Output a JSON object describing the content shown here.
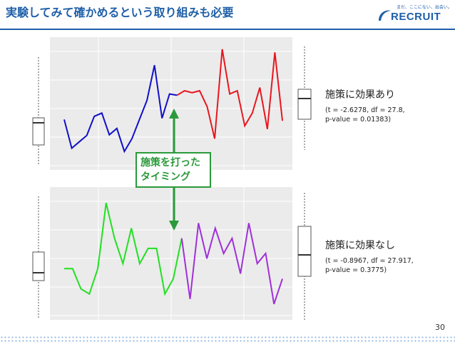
{
  "title": "実験してみて確かめるという取り組みも必要",
  "logo": {
    "tagline": "まだ、ここにない、出会い。",
    "word": "RECRUIT"
  },
  "colors": {
    "accent": "#1f5fa8",
    "green_callout": "#2a9a3a"
  },
  "callout": {
    "line1": "施策を打った",
    "line2": "タイミング"
  },
  "top_panel": {
    "heading": "施策に効果あり",
    "stat_line1": "(t = -2.6278, df = 27.8,",
    "stat_line2": "p-value = 0.01383)",
    "before_color": "#1010c8",
    "after_color": "#e8161e"
  },
  "bottom_panel": {
    "heading": "施策に効果なし",
    "stat_line1": "(t = -0.8967, df = 27.917,",
    "stat_line2": "p-value = 0.3775)",
    "before_color": "#22e022",
    "after_color": "#a030d8"
  },
  "page_number": "30",
  "chart_data": [
    {
      "type": "line",
      "series": [
        {
          "values": [
            0.7,
            0.25,
            0.35,
            0.45,
            0.75,
            0.8,
            0.46,
            0.56,
            0.2,
            0.4,
            0.7,
            1.0,
            1.55,
            0.72,
            1.1,
            1.08
          ]
        },
        {
          "values": [
            1.08,
            1.15,
            1.12,
            1.15,
            0.9,
            0.4,
            1.8,
            1.1,
            1.15,
            0.6,
            0.8,
            1.2,
            0.55,
            1.75,
            0.68
          ]
        }
      ]
    },
    {
      "type": "line",
      "series": [
        {
          "values": [
            0.3,
            0.3,
            -0.1,
            -0.2,
            0.3,
            1.6,
            0.9,
            0.4,
            1.1,
            0.4,
            0.7,
            0.7,
            -0.2,
            0.1,
            0.9
          ]
        },
        {
          "values": [
            0.9,
            -0.3,
            1.2,
            0.5,
            1.1,
            0.6,
            0.9,
            0.2,
            1.2,
            0.4,
            0.6,
            -0.4,
            0.1
          ]
        }
      ]
    }
  ]
}
